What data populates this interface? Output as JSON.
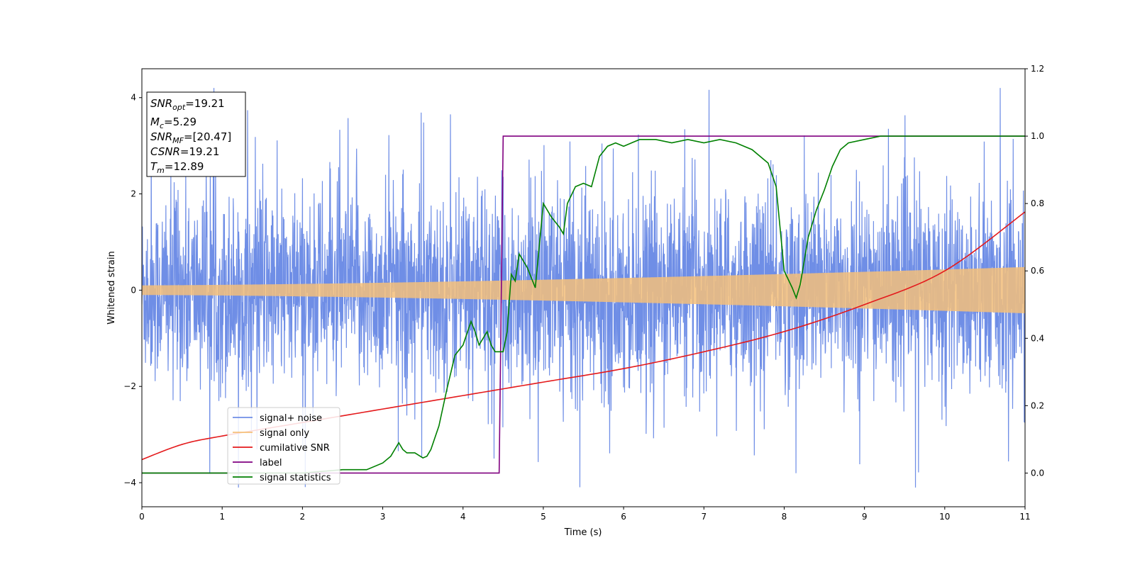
{
  "chart_data": {
    "type": "line",
    "xlabel": "Time (s)",
    "ylabel": "Whitened strain",
    "xlim": [
      0,
      11
    ],
    "ylim": [
      -4.5,
      4.6
    ],
    "y2lim": [
      -0.1,
      1.2
    ],
    "x_ticks": [
      "0",
      "1",
      "2",
      "3",
      "4",
      "5",
      "6",
      "7",
      "8",
      "9",
      "10",
      "11"
    ],
    "y_ticks": [
      "−4",
      "−2",
      "0",
      "2",
      "4"
    ],
    "y2_ticks": [
      "0.0",
      "0.2",
      "0.4",
      "0.6",
      "0.8",
      "1.0",
      "1.2"
    ],
    "grid": false,
    "legend_position": "lower-left",
    "info_box": {
      "snr_opt": {
        "base": "SNR",
        "sub": "opt",
        "value": "=19.21"
      },
      "mc": {
        "base": "M",
        "sub": "c",
        "value": "=5.29"
      },
      "snr_mf": {
        "base": "SNR",
        "sub": "MF",
        "value": "=[20.47]"
      },
      "csnr": {
        "base": "CSNR",
        "sub": "",
        "value": "=19.21"
      },
      "tm": {
        "base": "T",
        "sub": "m",
        "value": "=12.89"
      }
    },
    "series": [
      {
        "name": "signal+ noise",
        "color": "#6f8ee6",
        "axis": "left",
        "kind": "noise",
        "typical_range": [
          -2.5,
          2.5
        ],
        "max": 4.2,
        "min": -4.1
      },
      {
        "name": "signal only",
        "color": "#f5c07a",
        "axis": "left",
        "kind": "chirp",
        "amplitude_start": 0.1,
        "amplitude_end": 0.48
      },
      {
        "name": "cumilative SNR",
        "color": "#e41a1c",
        "axis": "right",
        "kind": "curve",
        "x": [
          0,
          0.5,
          1,
          2,
          3,
          4,
          5,
          6,
          7,
          8,
          9,
          10,
          11
        ],
        "y": [
          0.04,
          0.085,
          0.11,
          0.15,
          0.19,
          0.23,
          0.27,
          0.31,
          0.36,
          0.42,
          0.5,
          0.6,
          0.775
        ]
      },
      {
        "name": "label",
        "color": "#800080",
        "axis": "right",
        "kind": "step",
        "x": [
          0,
          4.45,
          4.5,
          11
        ],
        "y": [
          0,
          0,
          1,
          1
        ]
      },
      {
        "name": "signal statistics",
        "color": "#008000",
        "axis": "right",
        "kind": "curve",
        "x": [
          0,
          2.0,
          2.5,
          2.8,
          3.0,
          3.1,
          3.2,
          3.25,
          3.3,
          3.4,
          3.5,
          3.55,
          3.6,
          3.7,
          3.8,
          3.9,
          4.0,
          4.1,
          4.15,
          4.2,
          4.3,
          4.35,
          4.4,
          4.5,
          4.55,
          4.6,
          4.65,
          4.7,
          4.8,
          4.9,
          5.0,
          5.1,
          5.2,
          5.25,
          5.3,
          5.4,
          5.5,
          5.6,
          5.7,
          5.8,
          5.9,
          6.0,
          6.2,
          6.4,
          6.6,
          6.8,
          7.0,
          7.2,
          7.4,
          7.6,
          7.8,
          7.9,
          8.0,
          8.1,
          8.15,
          8.2,
          8.3,
          8.4,
          8.5,
          8.6,
          8.7,
          8.8,
          9.0,
          9.2,
          9.5,
          10.0,
          11.0
        ],
        "y": [
          0.0,
          0.0,
          0.01,
          0.01,
          0.03,
          0.05,
          0.09,
          0.07,
          0.06,
          0.06,
          0.045,
          0.05,
          0.07,
          0.14,
          0.25,
          0.35,
          0.38,
          0.45,
          0.42,
          0.38,
          0.42,
          0.38,
          0.36,
          0.36,
          0.42,
          0.59,
          0.57,
          0.65,
          0.61,
          0.55,
          0.8,
          0.76,
          0.73,
          0.71,
          0.8,
          0.85,
          0.86,
          0.85,
          0.94,
          0.97,
          0.98,
          0.97,
          0.99,
          0.99,
          0.98,
          0.99,
          0.98,
          0.99,
          0.98,
          0.96,
          0.92,
          0.85,
          0.6,
          0.55,
          0.52,
          0.56,
          0.7,
          0.78,
          0.84,
          0.91,
          0.96,
          0.98,
          0.99,
          1.0,
          1.0,
          1.0,
          1.0
        ]
      }
    ]
  }
}
